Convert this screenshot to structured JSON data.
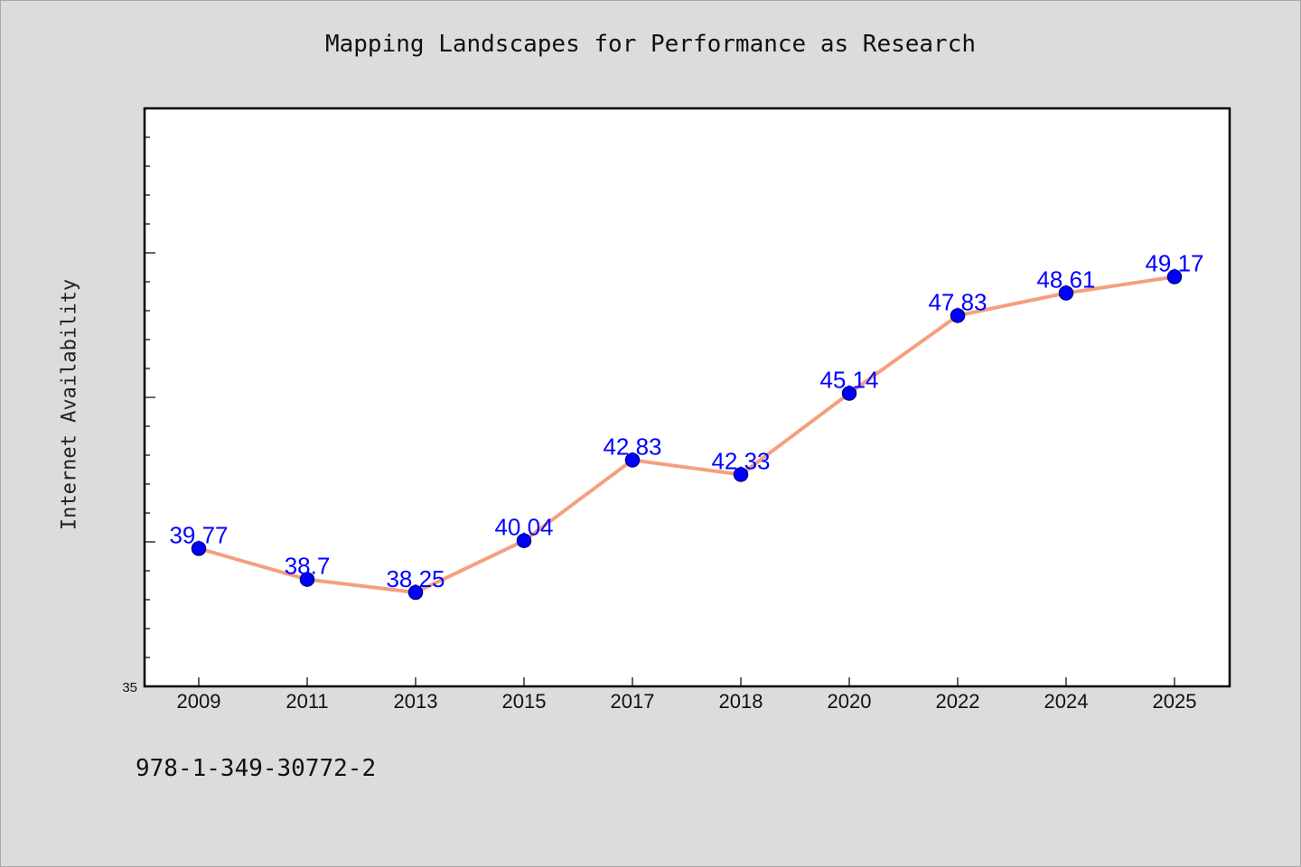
{
  "page": {
    "isbn": "978-1-349-30772-2"
  },
  "colors": {
    "line": "#f4a07e",
    "marker": "#0000ff",
    "marker_edge": "#00008b",
    "label": "#0000ff",
    "background": "#dcdcdc",
    "plot_background": "#ffffff"
  },
  "chart_data": {
    "type": "line",
    "title": "Mapping Landscapes for Performance as Research",
    "xlabel": "",
    "ylabel": "Internet Availability",
    "categories": [
      "2009",
      "2011",
      "2013",
      "2015",
      "2017",
      "2018",
      "2020",
      "2022",
      "2024",
      "2025"
    ],
    "series": [
      {
        "values": [
          39.77,
          38.7,
          38.25,
          40.04,
          42.83,
          42.33,
          45.14,
          47.83,
          48.61,
          49.17
        ],
        "labels": [
          "39.77",
          "38.7",
          "38.25",
          "40.04",
          "42.83",
          "42.33",
          "45.14",
          "47.83",
          "48.61",
          "49.17"
        ]
      }
    ],
    "ylim": [
      35,
      55
    ],
    "yticks_labeled": [
      "35"
    ],
    "minor_tick_step": 1,
    "major_tick_step": 5,
    "grid": false,
    "legend": "none"
  }
}
